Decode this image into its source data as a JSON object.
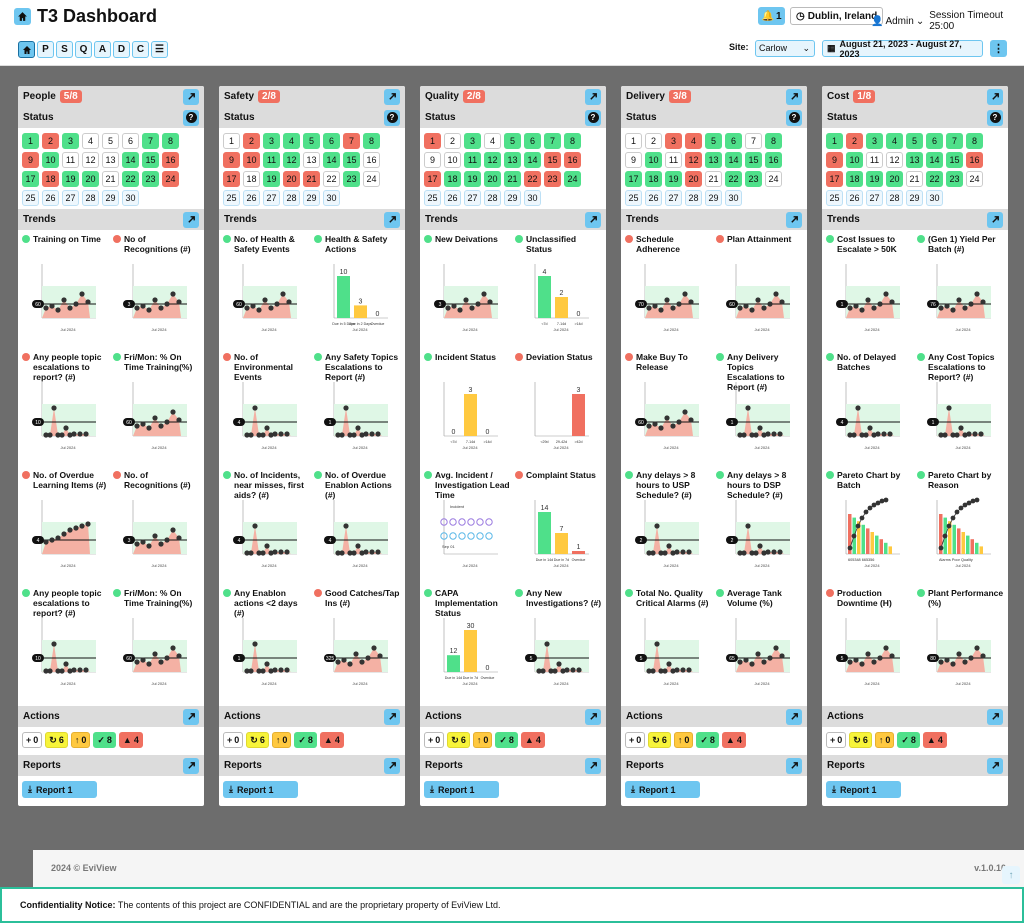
{
  "header": {
    "title": "T3 Dashboard",
    "notifications": "1",
    "location": "Dublin, Ireland",
    "user": "Admin",
    "session": "Session Timeout 25:00"
  },
  "nav": [
    "P",
    "S",
    "Q",
    "A",
    "D",
    "C"
  ],
  "site": {
    "label": "Site:",
    "value": "Carlow"
  },
  "daterange": "August 21, 2023 - August 27, 2023",
  "labels": {
    "status": "Status",
    "trends": "Trends",
    "actions": "Actions",
    "reports": "Reports",
    "report_btn": "Report 1"
  },
  "columns": [
    {
      "name": "People",
      "badge": "5/8",
      "days": "ggg..ggggg.....ggrgr............rgg......",
      "trends": [
        {
          "title": "Training on Time",
          "color": "g",
          "kind": "line",
          "v": "60"
        },
        {
          "title": "No of Recognitions (#)",
          "color": "r",
          "kind": "line",
          "v": "3"
        },
        {
          "title": "Any people topic escalations to report? (#)",
          "color": "r",
          "kind": "spike",
          "v": "10"
        },
        {
          "title": "Fri/Mon: % On Time Training(%)",
          "color": "g",
          "kind": "line",
          "v": "60"
        },
        {
          "title": "No. of Overdue Learning Items (#)",
          "color": "r",
          "kind": "rise",
          "v": "4"
        },
        {
          "title": "No. of Recognitions (#)",
          "color": "r",
          "kind": "line",
          "v": "3"
        },
        {
          "title": "Any people topic escalations to report? (#)",
          "color": "g",
          "kind": "spike",
          "v": "10"
        },
        {
          "title": "Fri/Mon: % On Time Training(%)",
          "color": "g",
          "kind": "line",
          "v": "60"
        }
      ],
      "actions": [
        "0",
        "6",
        "0",
        "8",
        "4"
      ]
    },
    {
      "name": "Safety",
      "badge": "2/8",
      "days": ".rgg.ggrgr",
      "trends": [
        {
          "title": "No. of Health & Safety Events",
          "color": "g",
          "kind": "line",
          "v": "60"
        },
        {
          "title": "Health & Safety Actions",
          "color": "g",
          "kind": "bar3",
          "vals": [
            "10",
            "3",
            "0"
          ],
          "cats": [
            "Due in 5 Days",
            "Due in 2 Days",
            "Overdue"
          ]
        },
        {
          "title": "No. of Environmental Events",
          "color": "r",
          "kind": "spike",
          "v": "4"
        },
        {
          "title": "Any Safety Topics Escalations to Report (#)",
          "color": "g",
          "kind": "spike",
          "v": "1"
        },
        {
          "title": "No. of Incidents, near misses, first aids? (#)",
          "color": "g",
          "kind": "spike",
          "v": "4"
        },
        {
          "title": "No. of Overdue Enablon Actions (#)",
          "color": "g",
          "kind": "spike",
          "v": "4"
        },
        {
          "title": "Any Enablon actions <2 days (#)",
          "color": "g",
          "kind": "spike",
          "v": "1"
        },
        {
          "title": "Good Catches/Tap Ins (#)",
          "color": "r",
          "kind": "line",
          "v": "325"
        }
      ],
      "actions": [
        "0",
        "6",
        "0",
        "8",
        "4"
      ]
    },
    {
      "name": "Quality",
      "badge": "2/8",
      "trends": [
        {
          "title": "New Deivations",
          "color": "g",
          "kind": "line",
          "v": "3"
        },
        {
          "title": "Unclassified Status",
          "color": "g",
          "kind": "bar3",
          "vals": [
            "4",
            "2",
            "0"
          ],
          "cats": [
            "<7d",
            "7-14d",
            ">14d"
          ]
        },
        {
          "title": "Incident Status",
          "color": "g",
          "kind": "bar3",
          "vals": [
            "0",
            "3",
            "0"
          ],
          "cats": [
            "<7d",
            "7-14d",
            ">14d"
          ]
        },
        {
          "title": "Deviation Status",
          "color": "r",
          "kind": "bar3",
          "vals": [
            "",
            "",
            "3"
          ],
          "cats": [
            "<29d",
            "29-42d",
            ">42d"
          ]
        },
        {
          "title": "Avg. Incident / Investigation Lead Time",
          "color": "g",
          "kind": "dots",
          "v": "28",
          "sub": "Incident",
          "date": "Sep 01"
        },
        {
          "title": "Complaint Status",
          "color": "r",
          "kind": "bar3",
          "vals": [
            "14",
            "7",
            "1"
          ],
          "cats": [
            "Due in 14d",
            "Due in 7d",
            "Overdue"
          ]
        },
        {
          "title": "CAPA Implementation Status",
          "color": "g",
          "kind": "bar3",
          "vals": [
            "12",
            "30",
            "0"
          ],
          "cats": [
            "Due in 14d",
            "Due in 7d",
            "Overdue"
          ]
        },
        {
          "title": "Any New Investigations? (#)",
          "color": "g",
          "kind": "spike",
          "v": "5"
        }
      ],
      "actions": [
        "0",
        "6",
        "0",
        "8",
        "4"
      ]
    },
    {
      "name": "Delivery",
      "badge": "3/8",
      "trends": [
        {
          "title": "Schedule Adherence",
          "color": "r",
          "kind": "line",
          "v": "70"
        },
        {
          "title": "Plan Attainment",
          "color": "r",
          "kind": "line",
          "v": "60"
        },
        {
          "title": "Make Buy To Release",
          "color": "r",
          "kind": "line",
          "v": "60"
        },
        {
          "title": "Any Delivery Topics Escalations to Report (#)",
          "color": "g",
          "kind": "spike",
          "v": "1"
        },
        {
          "title": "Any delays > 8 hours to USP Schedule? (#)",
          "color": "g",
          "kind": "spike",
          "v": "2"
        },
        {
          "title": "Any delays > 8 hours to DSP Schedule? (#)",
          "color": "g",
          "kind": "spike",
          "v": "2"
        },
        {
          "title": "Total No. Quality Critical Alarms (#)",
          "color": "g",
          "kind": "spike",
          "v": "5"
        },
        {
          "title": "Average Tank Volume (%)",
          "color": "g",
          "kind": "line",
          "v": "65"
        }
      ],
      "actions": [
        "0",
        "6",
        "0",
        "8",
        "4"
      ]
    },
    {
      "name": "Cost",
      "badge": "1/8",
      "trends": [
        {
          "title": "Cost Issues to Escalate > 50K",
          "color": "g",
          "kind": "line",
          "v": "1"
        },
        {
          "title": "(Gen 1) Yield Per Batch (#)",
          "color": "g",
          "kind": "line",
          "v": "76"
        },
        {
          "title": "No. of Delayed Batches",
          "color": "g",
          "kind": "spike",
          "v": "4"
        },
        {
          "title": "Any Cost Topics Escalations to Report? (#)",
          "color": "g",
          "kind": "spike",
          "v": "1"
        },
        {
          "title": "Pareto Chart by Batch",
          "color": "g",
          "kind": "pareto",
          "cats": "605348   665356"
        },
        {
          "title": "Pareto Chart by Reason",
          "color": "g",
          "kind": "pareto",
          "cats": "Alarms Poor Quality"
        },
        {
          "title": "Production Downtime (H)",
          "color": "r",
          "kind": "line",
          "v": "5"
        },
        {
          "title": "Plant Performance (%)",
          "color": "g",
          "kind": "line",
          "v": "80"
        }
      ],
      "actions": [
        "0",
        "6",
        "0",
        "8",
        "4"
      ]
    }
  ],
  "axis": {
    "month": "Jul 2024",
    "top": "100%",
    "bottom": "50%"
  },
  "footer": {
    "copyright": "2024 © EviView",
    "version": "v.1.0.10"
  },
  "notice": {
    "label": "Confidentiality Notice:",
    "text": "The contents of this project are CONFIDENTIAL and are the proprietary property of EviView Ltd."
  }
}
